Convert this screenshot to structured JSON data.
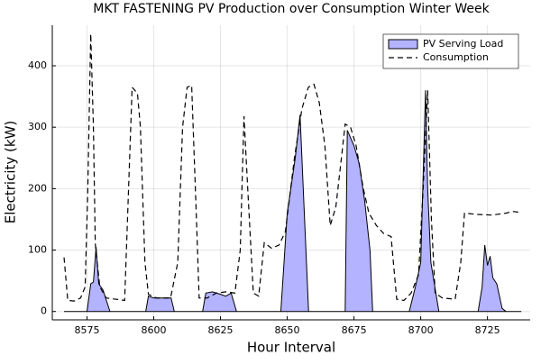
{
  "chart_data": {
    "type": "area",
    "title": "MKT FASTENING PV Production over Consumption Winter Week",
    "x_label": "Hour Interval",
    "y_label": "Electricity (kW)",
    "xlim": [
      8562,
      8741
    ],
    "ylim": [
      -13.6,
      466
    ],
    "xticks": [
      8575,
      8600,
      8625,
      8650,
      8675,
      8700,
      8725
    ],
    "yticks": [
      0,
      100,
      200,
      300,
      400
    ],
    "grid": true,
    "legend": "top-right",
    "series": [
      {
        "name": "PV Serving Load",
        "kind": "area",
        "color": "#b3b3ff",
        "x": [
          8566.4,
          8575,
          8576.4,
          8577.4,
          8578.4,
          8579.4,
          8581,
          8583.6,
          8597,
          8598,
          8600,
          8604,
          8606.5,
          8607.7,
          8618.3,
          8619.5,
          8622,
          8625,
          8627,
          8629,
          8631,
          8647.6,
          8650,
          8653,
          8654.8,
          8656,
          8658,
          8671.7,
          8672.5,
          8675,
          8677,
          8679,
          8681,
          8682,
          8695.7,
          8698,
          8700,
          8701.8,
          8702.6,
          8703.8,
          8706.8,
          8721.5,
          8723,
          8724,
          8725,
          8726,
          8727,
          8728.5,
          8730.5,
          8732,
          8737.7
        ],
        "values": [
          0,
          0,
          45,
          48,
          105,
          45,
          35,
          0,
          0,
          25,
          22,
          22,
          22,
          0,
          0,
          30,
          32,
          28,
          25,
          30,
          0,
          0,
          160,
          250,
          320,
          200,
          0,
          0,
          295,
          270,
          240,
          180,
          100,
          0,
          0,
          40,
          80,
          360,
          200,
          80,
          0,
          0,
          40,
          108,
          75,
          90,
          55,
          45,
          5,
          0,
          0
        ]
      },
      {
        "name": "Consumption",
        "kind": "line",
        "dash": true,
        "color": "#000000",
        "x": [
          8566.4,
          8567.8,
          8570.2,
          8572.6,
          8574.3,
          8575.3,
          8576.4,
          8577.4,
          8578.1,
          8579.8,
          8582.2,
          8585.7,
          8589.1,
          8591.9,
          8593.9,
          8595,
          8596.7,
          8598,
          8601,
          8606.3,
          8609,
          8610.8,
          8612.5,
          8614.2,
          8616,
          8617,
          8620,
          8623.5,
          8627,
          8630.4,
          8632.4,
          8633.8,
          8635.2,
          8637.3,
          8639.3,
          8641.4,
          8644.1,
          8646.9,
          8649.3,
          8652.7,
          8655.5,
          8657.9,
          8660,
          8662,
          8664.1,
          8666.1,
          8668.2,
          8670.3,
          8671.7,
          8673.7,
          8675.8,
          8678.5,
          8680.6,
          8683.4,
          8686.1,
          8688.9,
          8691,
          8693.7,
          8696.4,
          8699.2,
          8700.9,
          8702.6,
          8704,
          8705.4,
          8708.1,
          8712.9,
          8715,
          8716.4,
          8721.5,
          8726.7,
          8731.9,
          8734.3,
          8737.7
        ],
        "values": [
          88,
          18,
          17,
          22,
          40,
          200,
          452,
          300,
          110,
          40,
          22,
          20,
          18,
          365,
          355,
          300,
          80,
          28,
          22,
          22,
          80,
          300,
          365,
          368,
          150,
          22,
          22,
          30,
          32,
          30,
          100,
          318,
          200,
          30,
          25,
          112,
          103,
          108,
          130,
          250,
          330,
          365,
          370,
          340,
          270,
          140,
          170,
          250,
          305,
          300,
          270,
          200,
          160,
          140,
          127,
          122,
          20,
          18,
          30,
          60,
          200,
          360,
          150,
          30,
          22,
          20,
          80,
          160,
          158,
          157,
          160,
          163,
          161
        ]
      }
    ]
  }
}
